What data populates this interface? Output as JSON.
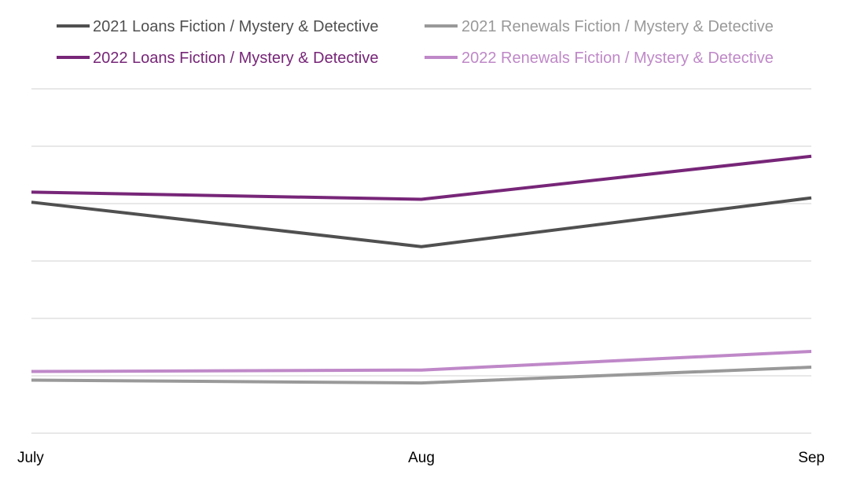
{
  "chart_data": {
    "type": "line",
    "title": "",
    "xlabel": "",
    "ylabel": "",
    "categories": [
      "July",
      "Aug",
      "Sep"
    ],
    "ylim": [
      0,
      120
    ],
    "grid": true,
    "legend_position": "top",
    "series": [
      {
        "name": "2021 Loans Fiction / Mystery & Detective",
        "values": [
          80.5,
          65.0,
          82.0
        ],
        "color": "#505050"
      },
      {
        "name": "2021 Renewals Fiction / Mystery & Detective",
        "values": [
          18.5,
          17.5,
          23.0
        ],
        "color": "#999999"
      },
      {
        "name": "2022 Loans Fiction / Mystery & Detective",
        "values": [
          84.0,
          81.5,
          96.5
        ],
        "color": "#772678"
      },
      {
        "name": "2022 Renewals Fiction / Mystery & Detective",
        "values": [
          21.5,
          22.0,
          28.5
        ],
        "color": "#bf88c8"
      }
    ]
  }
}
